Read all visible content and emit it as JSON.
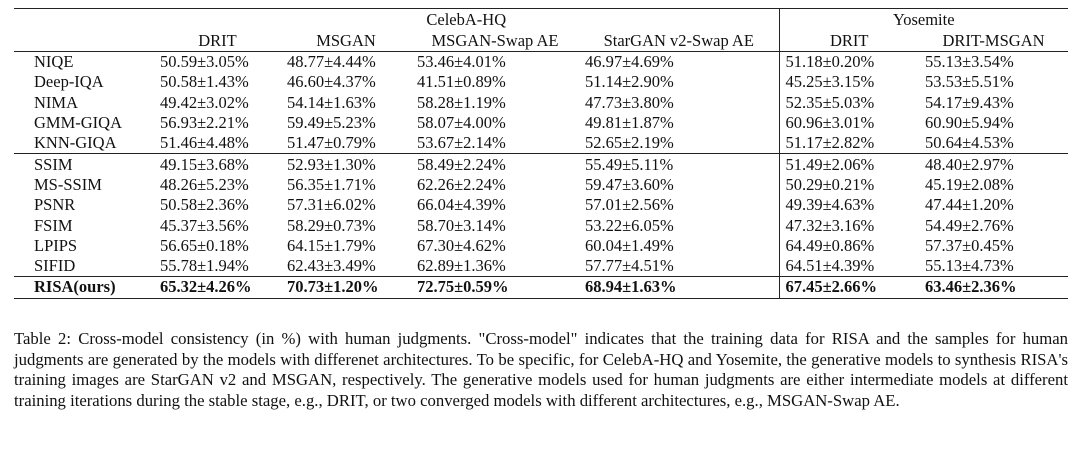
{
  "table": {
    "groups": [
      {
        "label": "CelebA-HQ",
        "cols": [
          "DRIT",
          "MSGAN",
          "MSGAN-Swap AE",
          "StarGAN v2-Swap AE"
        ]
      },
      {
        "label": "Yosemite",
        "cols": [
          "DRIT",
          "DRIT-MSGAN"
        ]
      }
    ],
    "section1": [
      {
        "name": "NIQE",
        "vals": [
          "50.59±3.05%",
          "48.77±4.44%",
          "53.46±4.01%",
          "46.97±4.69%",
          "51.18±0.20%",
          "55.13±3.54%"
        ]
      },
      {
        "name": "Deep-IQA",
        "vals": [
          "50.58±1.43%",
          "46.60±4.37%",
          "41.51±0.89%",
          "51.14±2.90%",
          "45.25±3.15%",
          "53.53±5.51%"
        ]
      },
      {
        "name": "NIMA",
        "vals": [
          "49.42±3.02%",
          "54.14±1.63%",
          "58.28±1.19%",
          "47.73±3.80%",
          "52.35±5.03%",
          "54.17±9.43%"
        ]
      },
      {
        "name": "GMM-GIQA",
        "vals": [
          "56.93±2.21%",
          "59.49±5.23%",
          "58.07±4.00%",
          "49.81±1.87%",
          "60.96±3.01%",
          "60.90±5.94%"
        ]
      },
      {
        "name": "KNN-GIQA",
        "vals": [
          "51.46±4.48%",
          "51.47±0.79%",
          "53.67±2.14%",
          "52.65±2.19%",
          "51.17±2.82%",
          "50.64±4.53%"
        ]
      }
    ],
    "section2": [
      {
        "name": "SSIM",
        "vals": [
          "49.15±3.68%",
          "52.93±1.30%",
          "58.49±2.24%",
          "55.49±5.11%",
          "51.49±2.06%",
          "48.40±2.97%"
        ]
      },
      {
        "name": "MS-SSIM",
        "vals": [
          "48.26±5.23%",
          "56.35±1.71%",
          "62.26±2.24%",
          "59.47±3.60%",
          "50.29±0.21%",
          "45.19±2.08%"
        ]
      },
      {
        "name": "PSNR",
        "vals": [
          "50.58±2.36%",
          "57.31±6.02%",
          "66.04±4.39%",
          "57.01±2.56%",
          "49.39±4.63%",
          "47.44±1.20%"
        ]
      },
      {
        "name": "FSIM",
        "vals": [
          "45.37±3.56%",
          "58.29±0.73%",
          "58.70±3.14%",
          "53.22±6.05%",
          "47.32±3.16%",
          "54.49±2.76%"
        ]
      },
      {
        "name": "LPIPS",
        "vals": [
          "56.65±0.18%",
          "64.15±1.79%",
          "67.30±4.62%",
          "60.04±1.49%",
          "64.49±0.86%",
          "57.37±0.45%"
        ]
      },
      {
        "name": "SIFID",
        "vals": [
          "55.78±1.94%",
          "62.43±3.49%",
          "62.89±1.36%",
          "57.77±4.51%",
          "64.51±4.39%",
          "55.13±4.73%"
        ]
      }
    ],
    "ours": {
      "name": "RISA(ours)",
      "vals": [
        "65.32±4.26%",
        "70.73±1.20%",
        "72.75±0.59%",
        "68.94±1.63%",
        "67.45±2.66%",
        "63.46±2.36%"
      ]
    }
  },
  "caption": "Table 2: Cross-model consistency (in %) with human judgments. \"Cross-model\" indicates that the training data for RISA and the samples for human judgments are generated by the models with differenet architectures. To be specific, for CelebA-HQ and Yosemite, the generative models to synthesis RISA's training images are StarGAN v2 and MSGAN, respectively. The generative models used for human judgments are either intermediate models at different training iterations during the stable stage, e.g., DRIT, or two converged models with different architectures, e.g., MSGAN-Swap AE."
}
